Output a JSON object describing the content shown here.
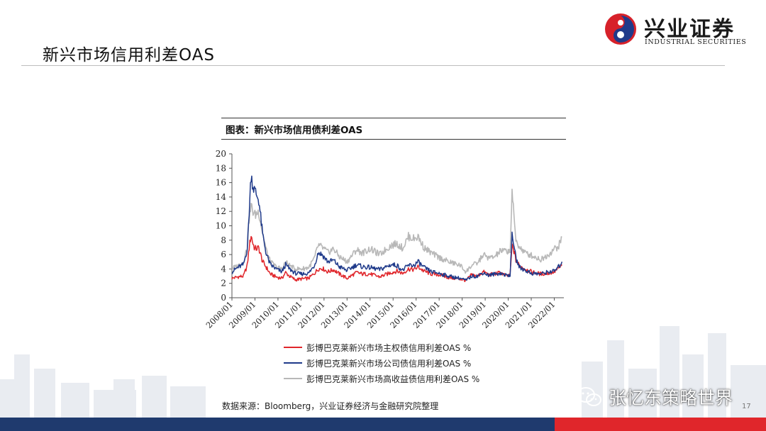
{
  "header": {
    "title": "新兴市场信用利差OAS",
    "logo_cn": "兴业证券",
    "logo_en": "INDUSTRIAL SECURITIES"
  },
  "chart_caption": "图表：新兴市场信用债利差OAS",
  "colors": {
    "sovereign": "#e0262b",
    "corporate": "#1f3a8a",
    "high_yield": "#b8b8b8",
    "footer_blue": "#1f3a6e",
    "footer_red": "#e0262b"
  },
  "chart_data": {
    "type": "line",
    "title": "",
    "xlabel": "",
    "ylabel": "",
    "ylim": [
      0,
      20
    ],
    "yticks": [
      "0",
      "2",
      "4",
      "6",
      "8",
      "10",
      "12",
      "14",
      "16",
      "18",
      "20"
    ],
    "xlim": [
      "2008/01",
      "2022/06"
    ],
    "xticks": [
      "2008/01",
      "2009/01",
      "2010/01",
      "2011/01",
      "2012/01",
      "2013/01",
      "2014/01",
      "2015/01",
      "2016/01",
      "2017/01",
      "2018/01",
      "2019/01",
      "2020/01",
      "2021/01",
      "2022/01"
    ],
    "grid": false,
    "legend_position": "bottom",
    "series": [
      {
        "name": "彭博巴克莱新兴市场主权债信用利差OAS %",
        "color": "#e0262b",
        "points": [
          [
            "2008/01",
            2.7
          ],
          [
            "2008/04",
            2.9
          ],
          [
            "2008/07",
            3.0
          ],
          [
            "2008/09",
            4.5
          ],
          [
            "2008/10",
            7.0
          ],
          [
            "2008/11",
            8.7
          ],
          [
            "2008/12",
            7.5
          ],
          [
            "2009/01",
            6.8
          ],
          [
            "2009/03",
            6.9
          ],
          [
            "2009/05",
            5.0
          ],
          [
            "2009/07",
            4.2
          ],
          [
            "2009/09",
            3.3
          ],
          [
            "2009/12",
            2.9
          ],
          [
            "2010/03",
            2.7
          ],
          [
            "2010/05",
            3.5
          ],
          [
            "2010/07",
            3.0
          ],
          [
            "2010/10",
            2.5
          ],
          [
            "2011/01",
            2.6
          ],
          [
            "2011/05",
            2.7
          ],
          [
            "2011/08",
            3.4
          ],
          [
            "2011/10",
            4.0
          ],
          [
            "2011/12",
            4.1
          ],
          [
            "2012/03",
            3.6
          ],
          [
            "2012/06",
            3.9
          ],
          [
            "2012/09",
            3.3
          ],
          [
            "2013/01",
            2.7
          ],
          [
            "2013/06",
            3.5
          ],
          [
            "2013/09",
            3.3
          ],
          [
            "2014/01",
            3.3
          ],
          [
            "2014/06",
            2.9
          ],
          [
            "2014/12",
            3.5
          ],
          [
            "2015/03",
            3.7
          ],
          [
            "2015/06",
            3.4
          ],
          [
            "2015/09",
            4.0
          ],
          [
            "2015/12",
            3.9
          ],
          [
            "2016/02",
            4.3
          ],
          [
            "2016/05",
            3.7
          ],
          [
            "2016/09",
            3.3
          ],
          [
            "2017/01",
            3.2
          ],
          [
            "2017/06",
            2.8
          ],
          [
            "2017/12",
            2.6
          ],
          [
            "2018/03",
            2.4
          ],
          [
            "2018/06",
            3.2
          ],
          [
            "2018/09",
            3.0
          ],
          [
            "2018/12",
            3.6
          ],
          [
            "2019/03",
            3.2
          ],
          [
            "2019/06",
            3.3
          ],
          [
            "2019/09",
            3.5
          ],
          [
            "2019/12",
            3.0
          ],
          [
            "2020/02",
            3.2
          ],
          [
            "2020/03",
            7.2
          ],
          [
            "2020/04",
            6.5
          ],
          [
            "2020/05",
            5.2
          ],
          [
            "2020/07",
            4.4
          ],
          [
            "2020/10",
            4.0
          ],
          [
            "2021/01",
            3.6
          ],
          [
            "2021/06",
            3.3
          ],
          [
            "2021/10",
            3.4
          ],
          [
            "2022/01",
            3.6
          ],
          [
            "2022/03",
            4.0
          ],
          [
            "2022/05",
            4.6
          ]
        ]
      },
      {
        "name": "彭博巴克莱新兴市场公司债信用利差OAS %",
        "color": "#1f3a8a",
        "points": [
          [
            "2008/01",
            3.6
          ],
          [
            "2008/04",
            4.2
          ],
          [
            "2008/07",
            4.6
          ],
          [
            "2008/09",
            6.8
          ],
          [
            "2008/10",
            12.0
          ],
          [
            "2008/11",
            17.2
          ],
          [
            "2008/12",
            15.5
          ],
          [
            "2009/01",
            14.8
          ],
          [
            "2009/03",
            13.6
          ],
          [
            "2009/05",
            8.8
          ],
          [
            "2009/07",
            6.0
          ],
          [
            "2009/09",
            4.6
          ],
          [
            "2009/12",
            4.0
          ],
          [
            "2010/03",
            3.6
          ],
          [
            "2010/05",
            4.6
          ],
          [
            "2010/07",
            4.0
          ],
          [
            "2010/10",
            3.4
          ],
          [
            "2011/01",
            3.3
          ],
          [
            "2011/05",
            3.4
          ],
          [
            "2011/08",
            4.5
          ],
          [
            "2011/10",
            6.3
          ],
          [
            "2011/12",
            6.0
          ],
          [
            "2012/03",
            5.0
          ],
          [
            "2012/06",
            5.2
          ],
          [
            "2012/09",
            4.3
          ],
          [
            "2013/01",
            3.8
          ],
          [
            "2013/06",
            4.6
          ],
          [
            "2013/09",
            4.3
          ],
          [
            "2014/01",
            4.2
          ],
          [
            "2014/06",
            3.9
          ],
          [
            "2014/12",
            4.6
          ],
          [
            "2015/03",
            4.5
          ],
          [
            "2015/06",
            3.8
          ],
          [
            "2015/09",
            4.5
          ],
          [
            "2015/12",
            4.5
          ],
          [
            "2016/02",
            5.0
          ],
          [
            "2016/05",
            4.2
          ],
          [
            "2016/09",
            3.6
          ],
          [
            "2017/01",
            3.4
          ],
          [
            "2017/06",
            3.0
          ],
          [
            "2017/12",
            2.7
          ],
          [
            "2018/03",
            2.4
          ],
          [
            "2018/06",
            3.0
          ],
          [
            "2018/09",
            3.0
          ],
          [
            "2018/12",
            3.5
          ],
          [
            "2019/03",
            3.1
          ],
          [
            "2019/06",
            3.3
          ],
          [
            "2019/09",
            3.4
          ],
          [
            "2019/12",
            3.1
          ],
          [
            "2020/02",
            3.2
          ],
          [
            "2020/03",
            8.6
          ],
          [
            "2020/04",
            7.5
          ],
          [
            "2020/05",
            5.4
          ],
          [
            "2020/07",
            4.2
          ],
          [
            "2020/10",
            3.8
          ],
          [
            "2021/01",
            3.4
          ],
          [
            "2021/06",
            3.3
          ],
          [
            "2021/10",
            3.6
          ],
          [
            "2022/01",
            3.7
          ],
          [
            "2022/03",
            4.2
          ],
          [
            "2022/05",
            5.0
          ]
        ]
      },
      {
        "name": "彭博巴克莱新兴市场高收益债信用利差OAS %",
        "color": "#b8b8b8",
        "points": [
          [
            "2008/01",
            4.1
          ],
          [
            "2008/04",
            4.4
          ],
          [
            "2008/07",
            5.0
          ],
          [
            "2008/09",
            7.0
          ],
          [
            "2008/10",
            11.0
          ],
          [
            "2008/11",
            12.7
          ],
          [
            "2008/12",
            12.0
          ],
          [
            "2009/01",
            11.5
          ],
          [
            "2009/03",
            12.0
          ],
          [
            "2009/05",
            9.0
          ],
          [
            "2009/07",
            6.5
          ],
          [
            "2009/09",
            5.0
          ],
          [
            "2009/12",
            4.3
          ],
          [
            "2010/03",
            4.0
          ],
          [
            "2010/05",
            5.0
          ],
          [
            "2010/07",
            4.5
          ],
          [
            "2010/10",
            4.0
          ],
          [
            "2011/01",
            4.0
          ],
          [
            "2011/05",
            4.2
          ],
          [
            "2011/08",
            5.5
          ],
          [
            "2011/10",
            7.3
          ],
          [
            "2011/12",
            7.0
          ],
          [
            "2012/03",
            6.3
          ],
          [
            "2012/06",
            6.8
          ],
          [
            "2012/09",
            5.7
          ],
          [
            "2013/01",
            5.0
          ],
          [
            "2013/06",
            6.7
          ],
          [
            "2013/09",
            6.2
          ],
          [
            "2014/01",
            6.8
          ],
          [
            "2014/06",
            6.0
          ],
          [
            "2014/12",
            7.3
          ],
          [
            "2015/03",
            7.5
          ],
          [
            "2015/06",
            6.9
          ],
          [
            "2015/09",
            8.5
          ],
          [
            "2015/12",
            8.2
          ],
          [
            "2016/02",
            8.5
          ],
          [
            "2016/05",
            7.0
          ],
          [
            "2016/09",
            6.2
          ],
          [
            "2017/01",
            5.6
          ],
          [
            "2017/06",
            5.0
          ],
          [
            "2017/12",
            4.5
          ],
          [
            "2018/03",
            3.6
          ],
          [
            "2018/06",
            4.5
          ],
          [
            "2018/09",
            4.8
          ],
          [
            "2018/12",
            6.0
          ],
          [
            "2019/03",
            5.5
          ],
          [
            "2019/06",
            5.7
          ],
          [
            "2019/09",
            6.5
          ],
          [
            "2019/12",
            6.5
          ],
          [
            "2020/02",
            6.5
          ],
          [
            "2020/03",
            14.9
          ],
          [
            "2020/04",
            11.0
          ],
          [
            "2020/05",
            8.0
          ],
          [
            "2020/07",
            7.0
          ],
          [
            "2020/10",
            6.2
          ],
          [
            "2021/01",
            5.9
          ],
          [
            "2021/06",
            5.3
          ],
          [
            "2021/10",
            6.0
          ],
          [
            "2022/01",
            6.8
          ],
          [
            "2022/03",
            7.0
          ],
          [
            "2022/05",
            8.4
          ]
        ]
      }
    ]
  },
  "source_text": "数据来源：Bloomberg，兴业证券经济与金融研究院整理",
  "watermark": "张忆东策略世界",
  "page_number": "17"
}
